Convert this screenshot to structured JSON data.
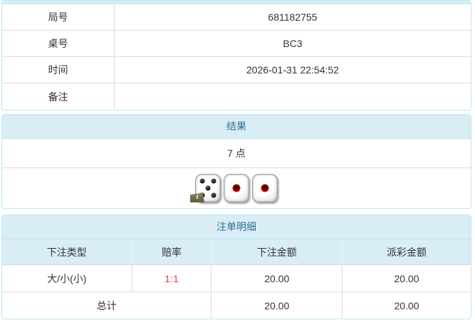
{
  "info": {
    "rows": [
      {
        "label": "局号",
        "value": "681182755"
      },
      {
        "label": "桌号",
        "value": "BC3"
      },
      {
        "label": "时间",
        "value": "2026-01-31 22:54:52"
      },
      {
        "label": "备注",
        "value": ""
      }
    ]
  },
  "result": {
    "title": "结果",
    "points": "7 点",
    "dice": [
      {
        "value": 5,
        "color": "black",
        "has_info_badge": true
      },
      {
        "value": 1,
        "color": "red",
        "has_info_badge": false
      },
      {
        "value": 1,
        "color": "red",
        "has_info_badge": false
      }
    ],
    "info_badge_glyph": "i"
  },
  "bets": {
    "title": "注单明细",
    "headers": [
      "下注类型",
      "赔率",
      "下注金额",
      "派彩金额"
    ],
    "rows": [
      {
        "type": "大/小(小)",
        "odds": "1:1",
        "bet_amount": "20.00",
        "payout_amount": "20.00"
      }
    ],
    "total": {
      "label": "总计",
      "bet_amount": "20.00",
      "payout_amount": "20.00"
    }
  },
  "colors": {
    "panel_border": "#bce8f1",
    "panel_heading_bg": "#d9edf7",
    "panel_heading_text": "#31708f",
    "row_border": "#dcdcdc",
    "odds_red": "#e4393c",
    "body_text": "#333333",
    "info_badge_bg": "#6e6845"
  }
}
